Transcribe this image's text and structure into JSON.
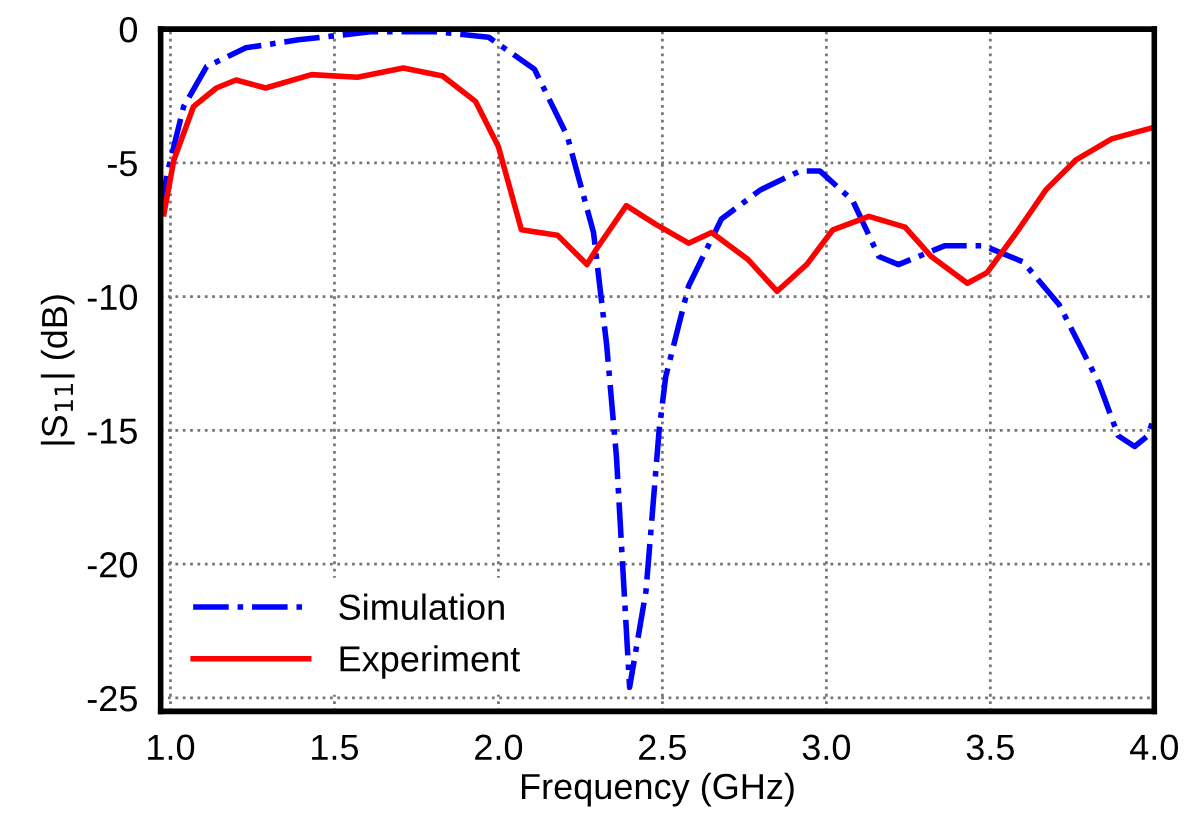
{
  "chart_data": {
    "type": "line",
    "xlabel": "Frequency (GHz)",
    "ylabel": "|S$_{11}$| (dB)",
    "xlim": [
      0.97,
      4.0
    ],
    "ylim": [
      -25.5,
      0
    ],
    "xticks": [
      {
        "value": 1.0,
        "label": "1.0"
      },
      {
        "value": 1.5,
        "label": "1.5"
      },
      {
        "value": 2.0,
        "label": "2.0"
      },
      {
        "value": 2.5,
        "label": "2.5"
      },
      {
        "value": 3.0,
        "label": "3.0"
      },
      {
        "value": 3.5,
        "label": "3.5"
      },
      {
        "value": 4.0,
        "label": "4.0"
      }
    ],
    "yticks": [
      0,
      -5,
      -10,
      -15,
      -20,
      -25
    ],
    "grid": true,
    "legend": "bottom left",
    "series": [
      {
        "name": "Simulation",
        "color": "#0000ff",
        "line_style": "dashdot",
        "x": [
          0.97,
          0.99,
          1.04,
          1.11,
          1.23,
          1.39,
          1.61,
          1.81,
          1.97,
          2.11,
          2.21,
          2.29,
          2.33,
          2.36,
          2.4,
          2.45,
          2.49,
          2.51,
          2.58,
          2.68,
          2.8,
          2.92,
          2.98,
          3.08,
          3.16,
          3.22,
          3.36,
          3.48,
          3.6,
          3.71,
          3.83,
          3.89,
          3.94,
          3.98,
          4.0
        ],
        "values": [
          -6.8,
          -5.4,
          -2.9,
          -1.4,
          -0.7,
          -0.4,
          -0.1,
          -0.1,
          -0.3,
          -1.5,
          -4,
          -7.6,
          -11.8,
          -16,
          -24.6,
          -21,
          -15,
          -13,
          -9.6,
          -7.1,
          -6.0,
          -5.3,
          -5.3,
          -6.4,
          -8.5,
          -8.8,
          -8.1,
          -8.1,
          -8.7,
          -10.3,
          -13.2,
          -15.2,
          -15.6,
          -15.2,
          -14.5
        ]
      },
      {
        "name": "Experiment",
        "color": "#ff0000",
        "line_style": "solid",
        "x": [
          0.98,
          1.01,
          1.07,
          1.14,
          1.2,
          1.29,
          1.43,
          1.57,
          1.71,
          1.83,
          1.93,
          2.0,
          2.07,
          2.18,
          2.27,
          2.3,
          2.39,
          2.48,
          2.58,
          2.65,
          2.76,
          2.85,
          2.94,
          3.02,
          3.13,
          3.24,
          3.32,
          3.43,
          3.49,
          3.58,
          3.67,
          3.76,
          3.87,
          3.99
        ],
        "values": [
          -6.9,
          -4.9,
          -2.9,
          -2.2,
          -1.9,
          -2.2,
          -1.7,
          -1.8,
          -1.45,
          -1.75,
          -2.7,
          -4.4,
          -7.5,
          -7.7,
          -8.8,
          -8.2,
          -6.6,
          -7.3,
          -8.0,
          -7.6,
          -8.6,
          -9.8,
          -8.8,
          -7.5,
          -7.0,
          -7.4,
          -8.5,
          -9.5,
          -9.1,
          -7.6,
          -6.0,
          -4.9,
          -4.1,
          -3.7
        ]
      }
    ]
  }
}
